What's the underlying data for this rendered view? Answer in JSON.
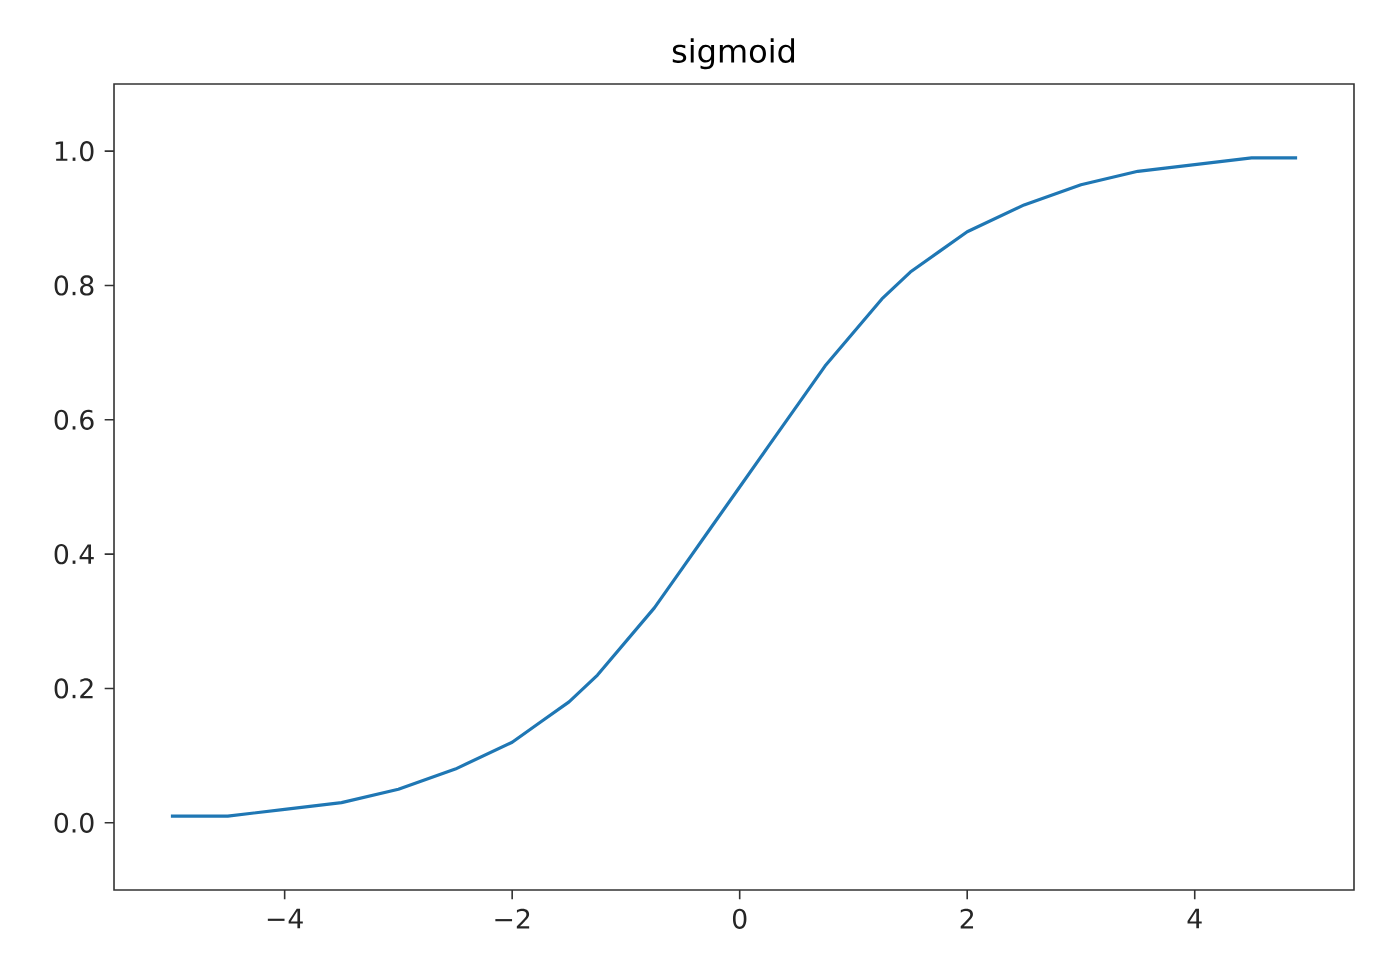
{
  "chart_data": {
    "type": "line",
    "title": "sigmoid",
    "x": [
      -5,
      -4.5,
      -4,
      -3.5,
      -3,
      -2.5,
      -2,
      -1.75,
      -1.5,
      -1.25,
      -1,
      -0.75,
      -0.5,
      -0.25,
      0,
      0.25,
      0.5,
      0.75,
      1,
      1.25,
      1.5,
      1.75,
      2,
      2.5,
      3,
      3.5,
      4,
      4.5,
      4.9
    ],
    "series": [
      {
        "color": "#1f77b4",
        "values": [
          0.01,
          0.01,
          0.02,
          0.03,
          0.05,
          0.08,
          0.12,
          0.15,
          0.18,
          0.22,
          0.27,
          0.32,
          0.38,
          0.44,
          0.5,
          0.56,
          0.62,
          0.68,
          0.73,
          0.78,
          0.82,
          0.85,
          0.88,
          0.92,
          0.95,
          0.97,
          0.98,
          0.99,
          0.99
        ]
      }
    ],
    "xlim": [
      -5.5,
      5.4
    ],
    "ylim": [
      -0.1,
      1.1
    ],
    "xticks": [
      {
        "value": -4,
        "label": "−4"
      },
      {
        "value": -2,
        "label": "−2"
      },
      0,
      2,
      4
    ],
    "yticks": [
      {
        "value": 0,
        "label": "0.0"
      },
      {
        "value": 0.2,
        "label": "0.2"
      },
      {
        "value": 0.4,
        "label": "0.4"
      },
      {
        "value": 0.6,
        "label": "0.6"
      },
      {
        "value": 0.8,
        "label": "0.8"
      },
      {
        "value": 1,
        "label": "1.0"
      }
    ]
  }
}
